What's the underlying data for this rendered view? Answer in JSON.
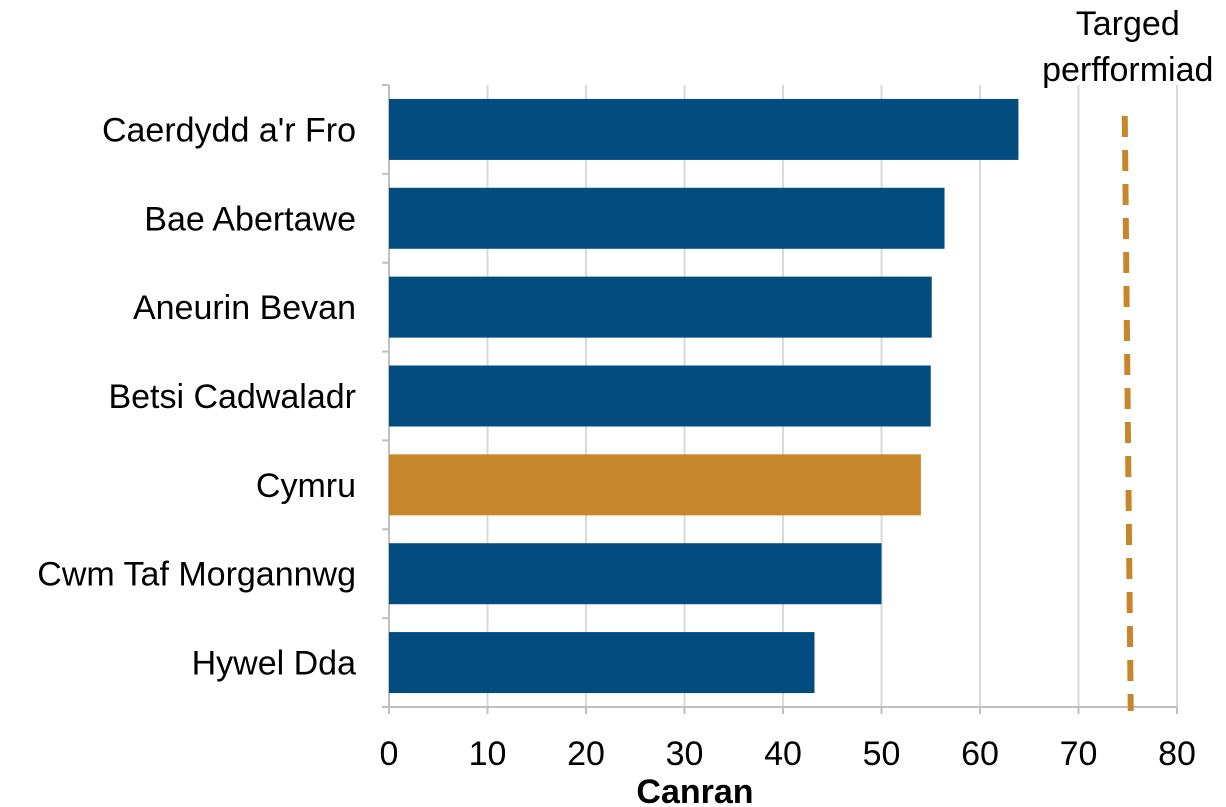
{
  "chart_data": {
    "type": "bar",
    "orientation": "horizontal",
    "categories": [
      "Caerdydd a'r Fro",
      "Bae Abertawe",
      "Aneurin Bevan",
      "Betsi Cadwaladr",
      "Cymru",
      "Cwm Taf Morgannwg",
      "Hywel Dda"
    ],
    "values": [
      63.9,
      56.4,
      55.1,
      55.0,
      54.0,
      50.0,
      43.2
    ],
    "highlight_category": "Cymru",
    "xlabel": "Canran",
    "xlim": [
      0,
      80
    ],
    "x_ticks": [
      0,
      10,
      20,
      30,
      40,
      50,
      60,
      70,
      80
    ],
    "grid": "vertical",
    "target": {
      "value": 75,
      "label_line1": "Targed",
      "label_line2": "perfformiad"
    },
    "colors": {
      "bar": "#034c7f",
      "highlight": "#c7862a",
      "target": "#c7862a",
      "grid": "#d9d9d9",
      "axis": "#c0c0c0"
    }
  }
}
